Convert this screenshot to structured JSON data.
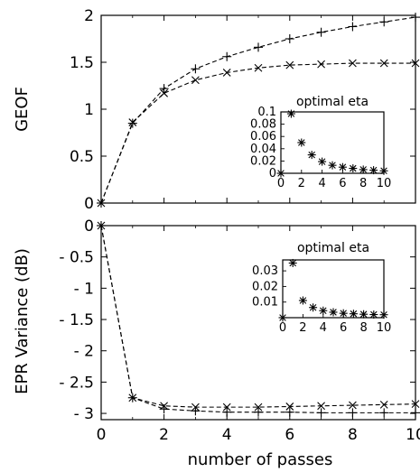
{
  "chart_data": [
    {
      "type": "line",
      "ylabel": "GEOF",
      "xlabel": "",
      "xlim": [
        0,
        10
      ],
      "ylim": [
        0,
        2
      ],
      "xticks": [
        0,
        2,
        4,
        6,
        8,
        10
      ],
      "yticks": [
        0,
        0.5,
        1,
        1.5,
        2
      ],
      "ytick_labels": [
        "0",
        "0.5",
        "1",
        "1.5",
        "2"
      ],
      "x": [
        0,
        1,
        2,
        3,
        4,
        5,
        6,
        7,
        8,
        9,
        10
      ],
      "series": [
        {
          "marker": "plus",
          "values": [
            0,
            0.85,
            1.22,
            1.43,
            1.56,
            1.66,
            1.75,
            1.82,
            1.88,
            1.93,
            1.98
          ]
        },
        {
          "marker": "cross",
          "values": [
            0,
            0.86,
            1.17,
            1.31,
            1.39,
            1.44,
            1.47,
            1.48,
            1.49,
            1.49,
            1.49
          ]
        }
      ],
      "inset": {
        "title": "optimal eta",
        "xlim": [
          0,
          10
        ],
        "ylim": [
          0,
          0.1
        ],
        "xticks": [
          0,
          2,
          4,
          6,
          8,
          10
        ],
        "yticks": [
          0,
          0.02,
          0.04,
          0.06,
          0.08,
          0.1
        ],
        "ytick_labels": [
          "0",
          "0.02",
          "0.04",
          "0.06",
          "0.08",
          "0.1"
        ],
        "x": [
          0,
          1,
          2,
          3,
          4,
          5,
          6,
          7,
          8,
          9,
          10
        ],
        "values": [
          0,
          0.097,
          0.05,
          0.03,
          0.019,
          0.013,
          0.01,
          0.008,
          0.006,
          0.005,
          0.004
        ]
      }
    },
    {
      "type": "line",
      "ylabel": "EPR Variance (dB)",
      "xlabel": "number of passes",
      "xlim": [
        0,
        10
      ],
      "ylim": [
        -3.1,
        0
      ],
      "xticks": [
        0,
        2,
        4,
        6,
        8,
        10
      ],
      "yticks": [
        0,
        -0.5,
        -1,
        -1.5,
        -2,
        -2.5,
        -3
      ],
      "ytick_labels": [
        "0",
        "- 0.5",
        "- 1",
        "- 1.5",
        "- 2",
        "- 2.5",
        "- 3"
      ],
      "x": [
        0,
        1,
        2,
        3,
        4,
        5,
        6,
        7,
        8,
        9,
        10
      ],
      "series": [
        {
          "marker": "plus",
          "values": [
            0,
            -2.75,
            -2.93,
            -2.96,
            -2.98,
            -2.98,
            -2.98,
            -2.99,
            -2.99,
            -2.99,
            -2.99
          ]
        },
        {
          "marker": "cross",
          "values": [
            0,
            -2.75,
            -2.88,
            -2.9,
            -2.9,
            -2.9,
            -2.89,
            -2.88,
            -2.87,
            -2.86,
            -2.85
          ]
        }
      ],
      "inset": {
        "title": "optimal eta",
        "xlim": [
          0,
          10
        ],
        "ylim": [
          0,
          0.037
        ],
        "xticks": [
          0,
          2,
          4,
          6,
          8,
          10
        ],
        "yticks": [
          0.01,
          0.02,
          0.03
        ],
        "ytick_labels": [
          "0.01",
          "0.02",
          "0.03"
        ],
        "x": [
          0,
          1,
          2,
          3,
          4,
          5,
          6,
          7,
          8,
          9,
          10
        ],
        "values": [
          0,
          0.035,
          0.011,
          0.0065,
          0.0045,
          0.0035,
          0.0028,
          0.0025,
          0.0022,
          0.002,
          0.0019
        ]
      }
    }
  ]
}
